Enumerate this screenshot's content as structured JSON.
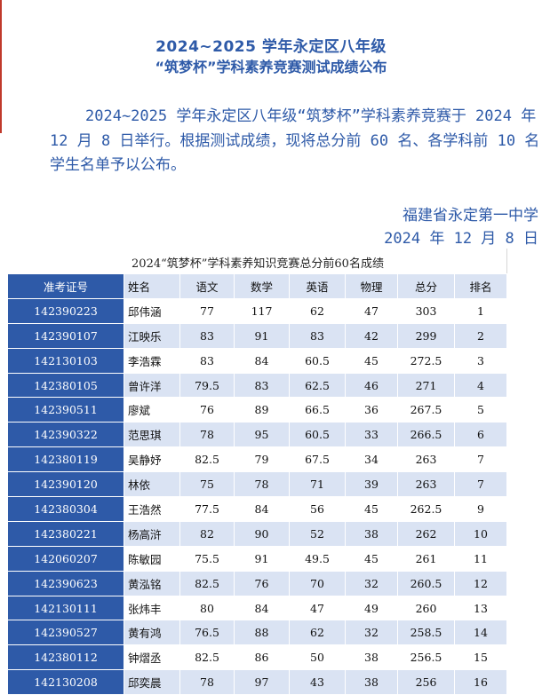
{
  "header": {
    "title_line1": "2024~2025 学年永定区八年级",
    "title_line2": "“筑梦杯”学科素养竞赛测试成绩公布"
  },
  "intro": "2024~2025 学年永定区八年级“筑梦杯”学科素养竞赛于 2024 年 12 月 8 日举行。根据测试成绩，现将总分前 60 名、各学科前 10 名学生名单予以公布。",
  "signature": {
    "org": "福建省永定第一中学",
    "date": "2024 年 12 月 8 日"
  },
  "table": {
    "title": "2024“筑梦杯”学科素养知识竞赛总分前60名成绩",
    "headers": [
      "准考证号",
      "姓名",
      "语文",
      "数学",
      "英语",
      "物理",
      "总分",
      "排名"
    ],
    "rows": [
      [
        "142390223",
        "邱伟涵",
        "77",
        "117",
        "62",
        "47",
        "303",
        "1"
      ],
      [
        "142390107",
        "江映乐",
        "83",
        "91",
        "83",
        "42",
        "299",
        "2"
      ],
      [
        "142130103",
        "李浩霖",
        "83",
        "84",
        "60.5",
        "45",
        "272.5",
        "3"
      ],
      [
        "142380105",
        "曾许洋",
        "79.5",
        "83",
        "62.5",
        "46",
        "271",
        "4"
      ],
      [
        "142390511",
        "廖斌",
        "76",
        "89",
        "66.5",
        "36",
        "267.5",
        "5"
      ],
      [
        "142390322",
        "范思琪",
        "78",
        "95",
        "60.5",
        "33",
        "266.5",
        "6"
      ],
      [
        "142380119",
        "吴静妤",
        "82.5",
        "79",
        "67.5",
        "34",
        "263",
        "7"
      ],
      [
        "142390120",
        "林依",
        "75",
        "78",
        "71",
        "39",
        "263",
        "7"
      ],
      [
        "142380304",
        "王浩然",
        "77.5",
        "84",
        "56",
        "45",
        "262.5",
        "9"
      ],
      [
        "142380221",
        "杨高浒",
        "82",
        "90",
        "52",
        "38",
        "262",
        "10"
      ],
      [
        "142060207",
        "陈敏园",
        "75.5",
        "91",
        "49.5",
        "45",
        "261",
        "11"
      ],
      [
        "142390623",
        "黄泓铭",
        "82.5",
        "76",
        "70",
        "32",
        "260.5",
        "12"
      ],
      [
        "142130111",
        "张炜丰",
        "80",
        "84",
        "47",
        "49",
        "260",
        "13"
      ],
      [
        "142390527",
        "黄有鸿",
        "76.5",
        "88",
        "62",
        "32",
        "258.5",
        "14"
      ],
      [
        "142380112",
        "钟熠丞",
        "82.5",
        "86",
        "50",
        "38",
        "256.5",
        "15"
      ],
      [
        "142130208",
        "邱奕晨",
        "78",
        "97",
        "43",
        "38",
        "256",
        "16"
      ]
    ]
  }
}
